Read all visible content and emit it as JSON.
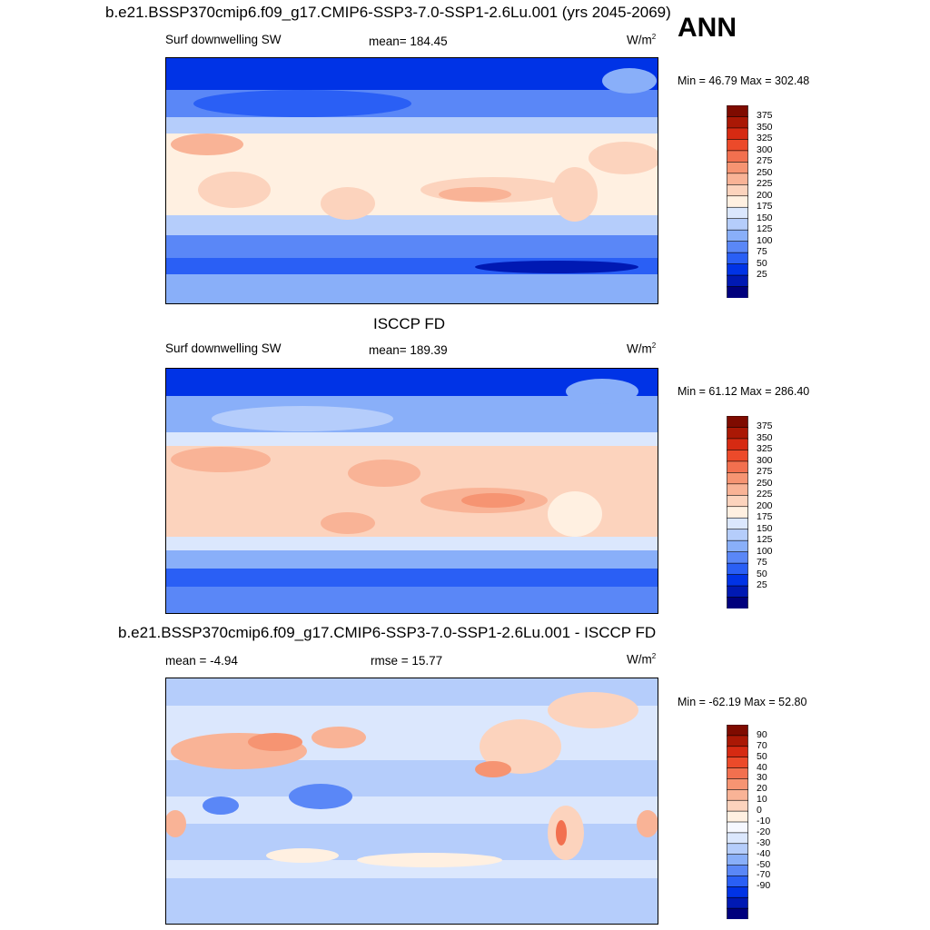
{
  "figure": {
    "season": "ANN",
    "colors": {
      "abs_scale": [
        "#00007d",
        "#0019b3",
        "#0033e6",
        "#2a5ff5",
        "#5a87f7",
        "#89aff9",
        "#b5cdfb",
        "#dbe7fd",
        "#fff0e1",
        "#fcd3bd",
        "#f9b396",
        "#f69472",
        "#f2704f",
        "#ec4a2a",
        "#d62a12",
        "#aa1805",
        "#7f0b00"
      ],
      "diff_scale": [
        "#00007d",
        "#0019b3",
        "#0033e6",
        "#2a5ff5",
        "#5a87f7",
        "#89aff9",
        "#b5cdfb",
        "#dbe7fd",
        "#f6f8ff",
        "#fff0e1",
        "#fcd3bd",
        "#f9b396",
        "#f69472",
        "#f2704f",
        "#ec4a2a",
        "#d62a12",
        "#aa1805",
        "#7f0b00"
      ]
    },
    "panels": [
      {
        "title": "b.e21.BSSP370cmip6.f09_g17.CMIP6-SSP3-7.0-SSP1-2.6Lu.001 (yrs 2045-2069)",
        "left": "Surf downwelling SW",
        "center": "mean= 184.45",
        "units": "W/m",
        "units_sup": "2",
        "minmax": "Min =  46.79 Max = 302.48",
        "colorbar_labels": [
          "375",
          "350",
          "325",
          "300",
          "275",
          "250",
          "225",
          "200",
          "175",
          "150",
          "125",
          "100",
          "75",
          "50",
          "25"
        ]
      },
      {
        "title": "ISCCP FD",
        "left": "Surf downwelling SW",
        "center": "mean= 189.39",
        "units": "W/m",
        "units_sup": "2",
        "minmax": "Min =  61.12 Max = 286.40",
        "colorbar_labels": [
          "375",
          "350",
          "325",
          "300",
          "275",
          "250",
          "225",
          "200",
          "175",
          "150",
          "125",
          "100",
          "75",
          "50",
          "25"
        ]
      },
      {
        "title": "b.e21.BSSP370cmip6.f09_g17.CMIP6-SSP3-7.0-SSP1-2.6Lu.001 - ISCCP FD",
        "left": "mean =  -4.94",
        "center": "rmse =  15.77",
        "units": "W/m",
        "units_sup": "2",
        "minmax": "Min = -62.19 Max =  52.80",
        "colorbar_labels": [
          "90",
          "70",
          "50",
          "40",
          "30",
          "20",
          "10",
          "0",
          "-10",
          "-20",
          "-30",
          "-40",
          "-50",
          "-70",
          "-90"
        ]
      }
    ]
  }
}
